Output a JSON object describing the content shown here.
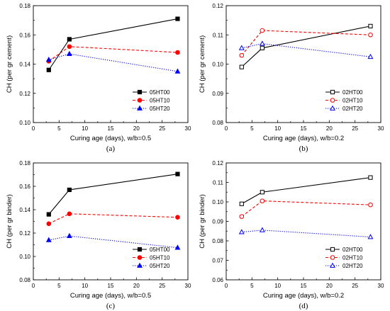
{
  "chart_data": [
    {
      "type": "line",
      "panel_label": "(a)",
      "xlabel": "Curing age (days), w/b=0.5",
      "ylabel": "CH (per gr cement)",
      "xlim": [
        0,
        30
      ],
      "ylim": [
        0.1,
        0.18
      ],
      "xticks": [
        0,
        5,
        10,
        15,
        20,
        25,
        30
      ],
      "xtick_labels": [
        "0",
        "5",
        "10",
        "15",
        "20",
        "25",
        "30"
      ],
      "yticks": [
        0.1,
        0.12,
        0.14,
        0.16,
        0.18
      ],
      "ytick_labels": [
        "0.10",
        "0.12",
        "0.14",
        "0.16",
        "0.18"
      ],
      "legend_position": "bottom-right",
      "grid": false,
      "series": [
        {
          "name": "05HT00",
          "x": [
            3,
            7,
            28
          ],
          "y": [
            0.136,
            0.157,
            0.171
          ],
          "color": "#000000",
          "dash": "solid",
          "marker": "square",
          "fill": true
        },
        {
          "name": "05HT10",
          "x": [
            3,
            7,
            28
          ],
          "y": [
            0.142,
            0.152,
            0.148
          ],
          "color": "#ff0000",
          "dash": "dashed",
          "marker": "circle",
          "fill": true
        },
        {
          "name": "05HT20",
          "x": [
            3,
            7,
            28
          ],
          "y": [
            0.143,
            0.147,
            0.135
          ],
          "color": "#0000ff",
          "dash": "dotted",
          "marker": "triangle",
          "fill": true
        }
      ]
    },
    {
      "type": "line",
      "panel_label": "(b)",
      "xlabel": "Curing age (days), w/b=0.2",
      "ylabel": "CH (per gr cement)",
      "xlim": [
        0,
        30
      ],
      "ylim": [
        0.08,
        0.12
      ],
      "xticks": [
        0,
        5,
        10,
        15,
        20,
        25,
        30
      ],
      "xtick_labels": [
        "0",
        "5",
        "10",
        "15",
        "20",
        "25",
        "30"
      ],
      "yticks": [
        0.08,
        0.09,
        0.1,
        0.11,
        0.12
      ],
      "ytick_labels": [
        "0.08",
        "0.09",
        "0.10",
        "0.11",
        "0.12"
      ],
      "legend_position": "bottom-right",
      "grid": false,
      "series": [
        {
          "name": "02HT00",
          "x": [
            3,
            7,
            28
          ],
          "y": [
            0.099,
            0.1055,
            0.113
          ],
          "color": "#000000",
          "dash": "solid",
          "marker": "square",
          "fill": false
        },
        {
          "name": "02HT10",
          "x": [
            3,
            7,
            28
          ],
          "y": [
            0.103,
            0.1115,
            0.11
          ],
          "color": "#ff0000",
          "dash": "dashed",
          "marker": "circle",
          "fill": false
        },
        {
          "name": "02HT20",
          "x": [
            3,
            7,
            28
          ],
          "y": [
            0.1055,
            0.107,
            0.1025
          ],
          "color": "#0000ff",
          "dash": "dotted",
          "marker": "triangle",
          "fill": false
        }
      ]
    },
    {
      "type": "line",
      "panel_label": "(c)",
      "xlabel": "Curing age (days), w/b=0.5",
      "ylabel": "CH (per gr binder)",
      "xlim": [
        0,
        30
      ],
      "ylim": [
        0.08,
        0.18
      ],
      "xticks": [
        0,
        5,
        10,
        15,
        20,
        25,
        30
      ],
      "xtick_labels": [
        "0",
        "5",
        "10",
        "15",
        "20",
        "25",
        "30"
      ],
      "yticks": [
        0.08,
        0.1,
        0.12,
        0.14,
        0.16,
        0.18
      ],
      "ytick_labels": [
        "0.08",
        "0.10",
        "0.12",
        "0.14",
        "0.16",
        "0.18"
      ],
      "legend_position": "bottom-right",
      "grid": false,
      "series": [
        {
          "name": "05HT00",
          "x": [
            3,
            7,
            28
          ],
          "y": [
            0.136,
            0.157,
            0.1705
          ],
          "color": "#000000",
          "dash": "solid",
          "marker": "square",
          "fill": true
        },
        {
          "name": "05HT10",
          "x": [
            3,
            7,
            28
          ],
          "y": [
            0.128,
            0.1365,
            0.1335
          ],
          "color": "#ff0000",
          "dash": "dashed",
          "marker": "circle",
          "fill": true
        },
        {
          "name": "05HT20",
          "x": [
            3,
            7,
            28
          ],
          "y": [
            0.114,
            0.1175,
            0.1075
          ],
          "color": "#0000ff",
          "dash": "dotted",
          "marker": "triangle",
          "fill": true
        }
      ]
    },
    {
      "type": "line",
      "panel_label": "(d)",
      "xlabel": "Curing age (days), w/b=0.2",
      "ylabel": "CH (per gr binder)",
      "xlim": [
        0,
        30
      ],
      "ylim": [
        0.06,
        0.12
      ],
      "xticks": [
        0,
        5,
        10,
        15,
        20,
        25,
        30
      ],
      "xtick_labels": [
        "0",
        "5",
        "10",
        "15",
        "20",
        "25",
        "30"
      ],
      "yticks": [
        0.06,
        0.07,
        0.08,
        0.09,
        0.1,
        0.11,
        0.12
      ],
      "ytick_labels": [
        "0.06",
        "0.07",
        "0.08",
        "0.09",
        "0.10",
        "0.11",
        "0.12"
      ],
      "legend_position": "bottom-right",
      "grid": false,
      "series": [
        {
          "name": "02HT00",
          "x": [
            3,
            7,
            28
          ],
          "y": [
            0.099,
            0.105,
            0.1125
          ],
          "color": "#000000",
          "dash": "solid",
          "marker": "square",
          "fill": false
        },
        {
          "name": "02HT10",
          "x": [
            3,
            7,
            28
          ],
          "y": [
            0.0925,
            0.1005,
            0.0985
          ],
          "color": "#ff0000",
          "dash": "dashed",
          "marker": "circle",
          "fill": false
        },
        {
          "name": "02HT20",
          "x": [
            3,
            7,
            28
          ],
          "y": [
            0.0845,
            0.0855,
            0.082
          ],
          "color": "#0000ff",
          "dash": "dotted",
          "marker": "triangle",
          "fill": false
        }
      ]
    }
  ]
}
